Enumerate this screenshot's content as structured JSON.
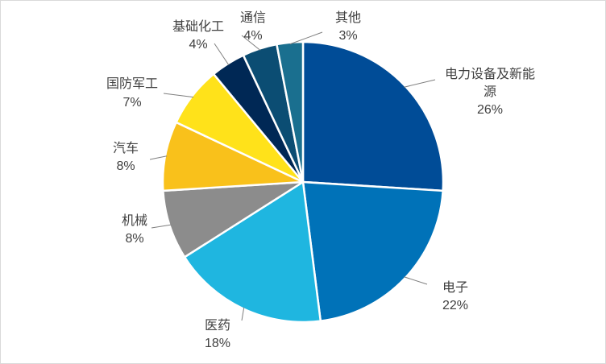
{
  "chart_data": {
    "type": "pie",
    "title": "",
    "slices": [
      {
        "name": "电力设备及新能源",
        "value": 26,
        "pct_label": "26%",
        "color": "#004c97"
      },
      {
        "name": "电子",
        "value": 22,
        "pct_label": "22%",
        "color": "#0072b8"
      },
      {
        "name": "医药",
        "value": 18,
        "pct_label": "18%",
        "color": "#1fb6e0"
      },
      {
        "name": "机械",
        "value": 8,
        "pct_label": "8%",
        "color": "#8c8c8c"
      },
      {
        "name": "汽车",
        "value": 8,
        "pct_label": "8%",
        "color": "#f9c11b"
      },
      {
        "name": "国防军工",
        "value": 7,
        "pct_label": "7%",
        "color": "#ffe21a"
      },
      {
        "name": "基础化工",
        "value": 4,
        "pct_label": "4%",
        "color": "#002855"
      },
      {
        "name": "通信",
        "value": 4,
        "pct_label": "4%",
        "color": "#0b4d73"
      },
      {
        "name": "其他",
        "value": 3,
        "pct_label": "3%",
        "color": "#1a6f8f"
      }
    ],
    "legend": "none"
  }
}
